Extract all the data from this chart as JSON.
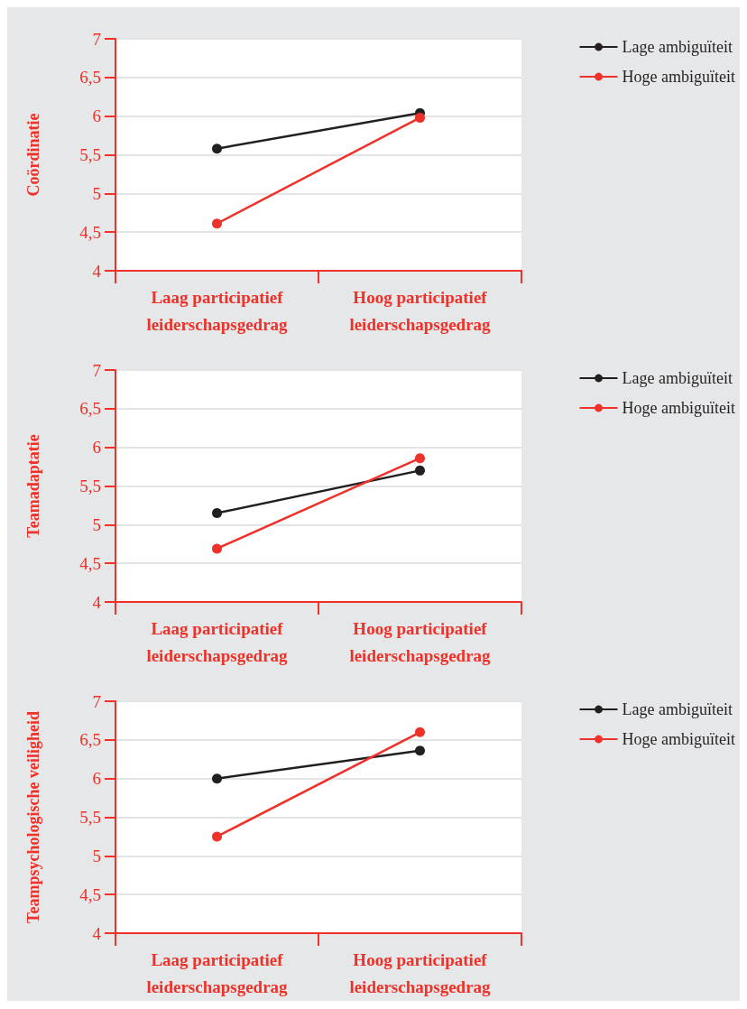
{
  "chart_data": [
    {
      "type": "line",
      "ylabel": "Coördinatie",
      "categories": [
        "Laag participatief\nleiderschapsgedrag",
        "Hoog participatief\nleiderschapsgedrag"
      ],
      "series": [
        {
          "name": "Lage ambiguïteit",
          "color": "#231f20",
          "values": [
            5.58,
            6.04
          ]
        },
        {
          "name": "Hoge ambiguïteit",
          "color": "#ee3129",
          "values": [
            4.61,
            5.98
          ]
        }
      ],
      "ylim": [
        4,
        7
      ],
      "yticks": [
        4,
        {
          "value": 4.5,
          "label": "4,5"
        },
        5,
        {
          "value": 5.5,
          "label": "5,5"
        },
        6,
        {
          "value": 6.5,
          "label": "6,5"
        },
        7
      ],
      "grid": "y",
      "legend": "top right",
      "marker": "circle",
      "line_style": "solid"
    },
    {
      "type": "line",
      "ylabel": "Teamadaptatie",
      "categories": [
        "Laag participatief\nleiderschapsgedrag",
        "Hoog participatief\nleiderschapsgedrag"
      ],
      "series": [
        {
          "name": "Lage ambiguïteit",
          "color": "#231f20",
          "values": [
            5.15,
            5.7
          ]
        },
        {
          "name": "Hoge ambiguïteit",
          "color": "#ee3129",
          "values": [
            4.69,
            5.86
          ]
        }
      ],
      "ylim": [
        4,
        7
      ],
      "yticks": [
        4,
        {
          "value": 4.5,
          "label": "4,5"
        },
        5,
        {
          "value": 5.5,
          "label": "5,5"
        },
        6,
        {
          "value": 6.5,
          "label": "6,5"
        },
        7
      ],
      "grid": "y",
      "legend": "top right",
      "marker": "circle",
      "line_style": "solid"
    },
    {
      "type": "line",
      "ylabel": "Teampsychologische veiligheid",
      "categories": [
        "Laag participatief\nleiderschapsgedrag",
        "Hoog participatief\nleiderschapsgedrag"
      ],
      "series": [
        {
          "name": "Lage ambiguïteit",
          "color": "#231f20",
          "values": [
            6.0,
            6.36
          ]
        },
        {
          "name": "Hoge ambiguïteit",
          "color": "#ee3129",
          "values": [
            5.25,
            6.6
          ]
        }
      ],
      "ylim": [
        4,
        7
      ],
      "yticks": [
        4,
        {
          "value": 4.5,
          "label": "4,5"
        },
        5,
        {
          "value": 5.5,
          "label": "5,5"
        },
        6,
        {
          "value": 6.5,
          "label": "6,5"
        },
        7
      ],
      "grid": "y",
      "legend": "top right",
      "marker": "circle",
      "line_style": "solid"
    }
  ]
}
